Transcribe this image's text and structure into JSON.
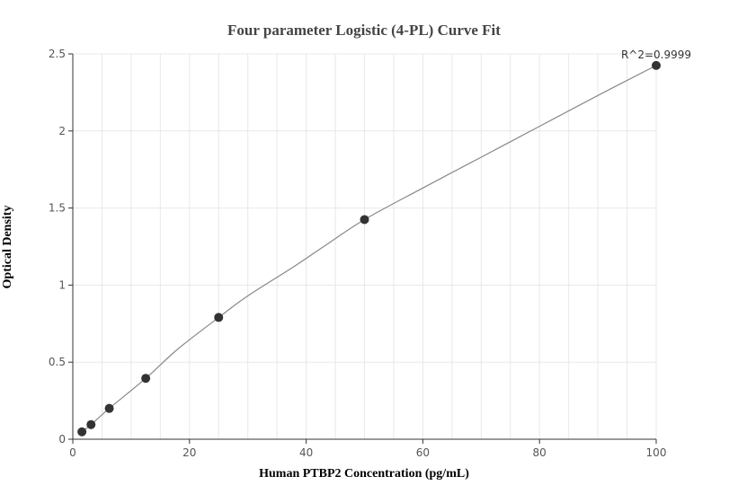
{
  "chart_data": {
    "type": "scatter",
    "title": "Four parameter Logistic (4-PL) Curve Fit",
    "xlabel": "Human PTBP2 Concentration (pg/mL)",
    "ylabel": "Optical Density",
    "xlim": [
      0,
      100
    ],
    "ylim": [
      0,
      2.5
    ],
    "x_ticks": [
      0,
      20,
      40,
      60,
      80,
      100
    ],
    "y_ticks": [
      0,
      0.5,
      1,
      1.5,
      2,
      2.5
    ],
    "x_tick_labels": [
      "0",
      "20",
      "40",
      "60",
      "80",
      "100"
    ],
    "y_tick_labels": [
      "0",
      "0.5",
      "1",
      "1.5",
      "2",
      "2.5"
    ],
    "x_minor_step": 5,
    "y_minor_step": 0.5,
    "grid": true,
    "series": [
      {
        "x": [
          1.5625,
          3.125,
          6.25,
          12.5,
          25,
          50,
          100
        ],
        "y": [
          0.048,
          0.095,
          0.2,
          0.395,
          0.79,
          1.425,
          2.425
        ]
      }
    ],
    "fit_curve": {
      "type": "4PL",
      "points": [
        [
          1.5625,
          0.048
        ],
        [
          3.125,
          0.095
        ],
        [
          6.25,
          0.2
        ],
        [
          12.5,
          0.395
        ],
        [
          18,
          0.585
        ],
        [
          25,
          0.79
        ],
        [
          30,
          0.93
        ],
        [
          37.5,
          1.11
        ],
        [
          43,
          1.25
        ],
        [
          50,
          1.425
        ],
        [
          60,
          1.63
        ],
        [
          70,
          1.83
        ],
        [
          80,
          2.03
        ],
        [
          90,
          2.23
        ],
        [
          100,
          2.425
        ]
      ]
    },
    "annotation": "R^2=0.9999",
    "colors": {
      "point": "#333333",
      "curve": "#888888",
      "grid": "#e8e8e8",
      "axis": "#333333"
    }
  }
}
